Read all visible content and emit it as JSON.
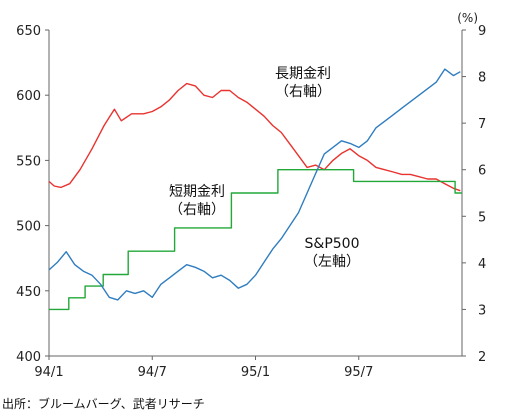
{
  "chart_data": {
    "type": "line",
    "left_axis": {
      "min": 400,
      "max": 650,
      "ticks": [
        400,
        450,
        500,
        550,
        600,
        650
      ]
    },
    "right_axis": {
      "min": 2,
      "max": 9,
      "ticks": [
        2,
        3,
        4,
        5,
        6,
        7,
        8,
        9
      ],
      "unit_label": "(%)"
    },
    "x_axis": {
      "start": "94/1",
      "end": "95/12",
      "tick_labels": [
        "94/1",
        "94/7",
        "95/1",
        "95/7"
      ]
    },
    "grid": false,
    "annotations": [
      {
        "line1": "長期金利",
        "line2": "（右軸）"
      },
      {
        "line1": "短期金利",
        "line2": "（右軸）"
      },
      {
        "line1": "S&P500",
        "line2": "（左軸）"
      }
    ],
    "source": "出所：ブルームバーグ、武者リサーチ",
    "series": [
      {
        "name": "長期金利",
        "axis": "right",
        "color": "#e8332f",
        "x": [
          0,
          0.3,
          0.7,
          1.2,
          1.8,
          2.5,
          3.2,
          3.8,
          4.2,
          4.8,
          5.5,
          6,
          6.5,
          7,
          7.5,
          8,
          8.5,
          9,
          9.5,
          10,
          10.5,
          11,
          11.5,
          12,
          12.5,
          13,
          13.5,
          14,
          14.5,
          15,
          15.5,
          16,
          16.5,
          17,
          17.5,
          18,
          18.5,
          19,
          19.5,
          20,
          20.5,
          21,
          21.5,
          22,
          22.5,
          23,
          23.5,
          23.9
        ],
        "values": [
          5.75,
          5.65,
          5.62,
          5.7,
          6.0,
          6.45,
          6.95,
          7.3,
          7.05,
          7.2,
          7.2,
          7.25,
          7.35,
          7.5,
          7.7,
          7.85,
          7.8,
          7.6,
          7.55,
          7.7,
          7.7,
          7.55,
          7.45,
          7.3,
          7.15,
          6.95,
          6.8,
          6.55,
          6.3,
          6.05,
          6.1,
          6.0,
          6.2,
          6.35,
          6.45,
          6.3,
          6.2,
          6.05,
          6.0,
          5.95,
          5.9,
          5.9,
          5.85,
          5.8,
          5.8,
          5.7,
          5.6,
          5.55
        ]
      },
      {
        "name": "短期金利",
        "axis": "right",
        "color": "#22a838",
        "x": [
          0,
          1.15,
          1.15,
          2.1,
          2.1,
          3.15,
          3.15,
          4.6,
          4.6,
          7.3,
          7.3,
          10.6,
          10.6,
          13.3,
          13.3,
          16.6,
          16.6,
          17.7,
          17.7,
          23.6,
          23.6,
          24.0
        ],
        "values": [
          3.0,
          3.0,
          3.25,
          3.25,
          3.5,
          3.5,
          3.75,
          3.75,
          4.25,
          4.25,
          4.75,
          4.75,
          5.5,
          5.5,
          6.0,
          6.0,
          6.0,
          6.0,
          5.75,
          5.75,
          5.5,
          5.5
        ]
      },
      {
        "name": "S&P500",
        "axis": "left",
        "color": "#2f7dbf",
        "x": [
          0,
          0.5,
          1,
          1.5,
          2,
          2.5,
          3,
          3.5,
          4,
          4.5,
          5,
          5.5,
          6,
          6.5,
          7,
          7.5,
          8,
          8.5,
          9,
          9.5,
          10,
          10.5,
          11,
          11.5,
          12,
          12.5,
          13,
          13.5,
          14,
          14.5,
          15,
          15.5,
          16,
          16.5,
          17,
          17.5,
          18,
          18.5,
          19,
          19.5,
          20,
          20.5,
          21,
          21.5,
          22,
          22.5,
          23,
          23.5,
          23.9
        ],
        "values": [
          466,
          472,
          480,
          470,
          465,
          462,
          455,
          445,
          443,
          450,
          448,
          450,
          445,
          455,
          460,
          465,
          470,
          468,
          465,
          460,
          462,
          458,
          452,
          455,
          462,
          472,
          482,
          490,
          500,
          510,
          525,
          540,
          555,
          560,
          565,
          563,
          560,
          565,
          575,
          580,
          585,
          590,
          595,
          600,
          605,
          610,
          620,
          615,
          618
        ]
      }
    ]
  }
}
